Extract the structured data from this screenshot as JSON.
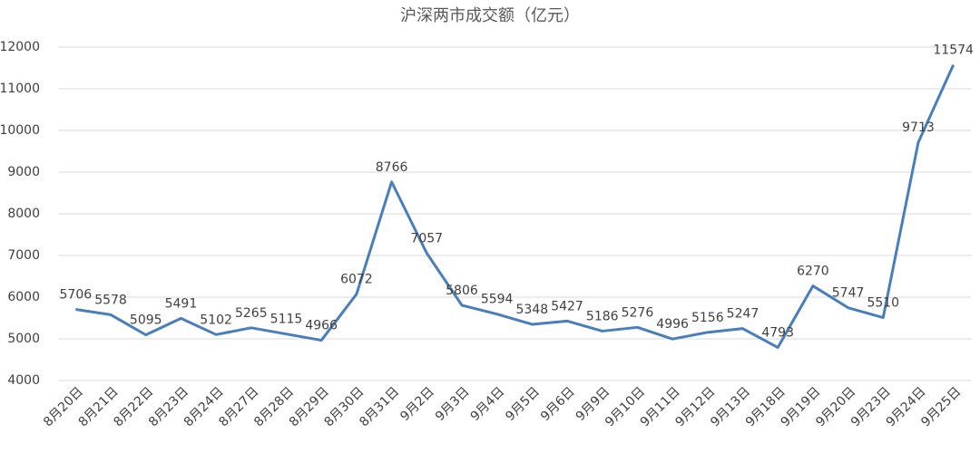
{
  "chart_data": {
    "type": "line",
    "title": "沪深两市成交额（亿元）",
    "categories": [
      "8月20日",
      "8月21日",
      "8月22日",
      "8月23日",
      "8月24日",
      "8月27日",
      "8月28日",
      "8月29日",
      "8月30日",
      "8月31日",
      "9月2日",
      "9月3日",
      "9月4日",
      "9月5日",
      "9月6日",
      "9月9日",
      "9月10日",
      "9月11日",
      "9月12日",
      "9月13日",
      "9月18日",
      "9月19日",
      "9月20日",
      "9月23日",
      "9月24日",
      "9月25日"
    ],
    "values": [
      5706,
      5578,
      5095,
      5491,
      5102,
      5265,
      5115,
      4966,
      6072,
      8766,
      7057,
      5806,
      5594,
      5348,
      5427,
      5186,
      5276,
      4996,
      5156,
      5247,
      4793,
      6270,
      5747,
      5510,
      9713,
      11574
    ],
    "color": "#4a7ebb",
    "ylim": [
      4000,
      12000
    ],
    "yticks": [
      4000,
      5000,
      6000,
      7000,
      8000,
      9000,
      10000,
      11000,
      12000
    ],
    "grid": true
  }
}
